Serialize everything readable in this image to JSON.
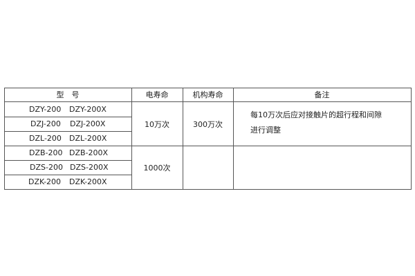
{
  "header": {
    "model": "型　号",
    "electrical_life": "电寿命",
    "mechanical_life": "机构寿命",
    "remarks": "备注"
  },
  "rows": [
    {
      "model_a": "DZY-200",
      "model_b": "DZY-200X"
    },
    {
      "model_a": "DZJ-200",
      "model_b": "DZJ-200X"
    },
    {
      "model_a": "DZL-200",
      "model_b": "DZL-200X"
    },
    {
      "model_a": "DZB-200",
      "model_b": "DZB-200X"
    },
    {
      "model_a": "DZS-200",
      "model_b": "DZS-200X"
    },
    {
      "model_a": "DZK-200",
      "model_b": "DZK-200X"
    }
  ],
  "groups": [
    {
      "electrical_life": "10万次",
      "mechanical_life": "300万次",
      "remark_line1": "每10万次后应对接触片的超行程和间隙",
      "remark_line2": "进行调整"
    },
    {
      "electrical_life": "1000次",
      "mechanical_life": "",
      "remark_line1": "",
      "remark_line2": ""
    }
  ]
}
